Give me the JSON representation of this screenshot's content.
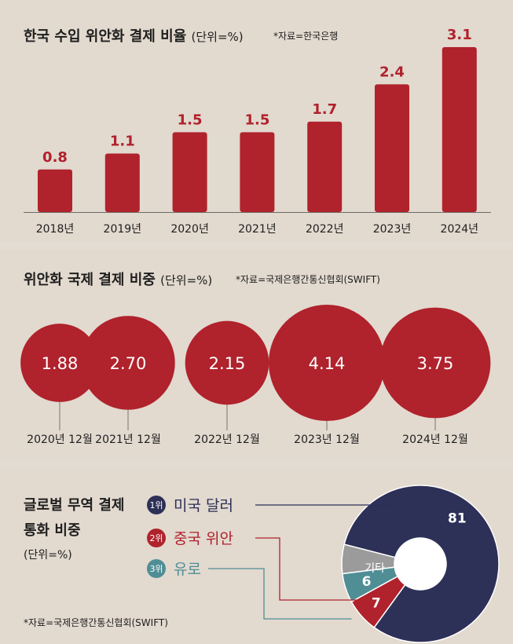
{
  "colors": {
    "red": "#b0222c",
    "navy": "#2d3057",
    "teal": "#4f8e95",
    "gray": "#9b9b9b",
    "background": "#e2d9cf"
  },
  "chart_data": [
    {
      "type": "bar",
      "title": "한국 수입 위안화 결제 비율",
      "unit": "(단위=%)",
      "source": "*자료=한국은행",
      "categories": [
        "2018년",
        "2019년",
        "2020년",
        "2021년",
        "2022년",
        "2023년",
        "2024년"
      ],
      "values": [
        0.8,
        1.1,
        1.5,
        1.5,
        1.7,
        2.4,
        3.1
      ],
      "value_labels": [
        "0.8",
        "1.1",
        "1.5",
        "1.5",
        "1.7",
        "2.4",
        "3.1"
      ],
      "ylim": [
        0,
        3.1
      ],
      "grid": false
    },
    {
      "type": "bubble",
      "title": "위안화 국제 결제 비중",
      "unit": "(단위=%)",
      "source": "*자료=국제은행간통신협회(SWIFT)",
      "categories": [
        "2020년 12월",
        "2021년 12월",
        "2022년 12월",
        "2023년 12월",
        "2024년 12월"
      ],
      "values": [
        1.88,
        2.7,
        2.15,
        4.14,
        3.75
      ],
      "value_labels": [
        "1.88",
        "2.70",
        "2.15",
        "4.14",
        "3.75"
      ]
    },
    {
      "type": "pie",
      "title_line1": "글로벌 무역 결제",
      "title_line2": "통화 비중",
      "unit": "(단위=%)",
      "source": "*자료=국제은행간통신협회(SWIFT)",
      "slices": [
        {
          "rank": "1위",
          "label": "미국 달러",
          "value": 81,
          "value_label": "81"
        },
        {
          "rank": "2위",
          "label": "중국 위안",
          "value": 7,
          "value_label": "7"
        },
        {
          "rank": "3위",
          "label": "유로",
          "value": 6,
          "value_label": "6"
        },
        {
          "rank": "",
          "label": "기타",
          "value": 6,
          "value_label": ""
        }
      ]
    }
  ]
}
